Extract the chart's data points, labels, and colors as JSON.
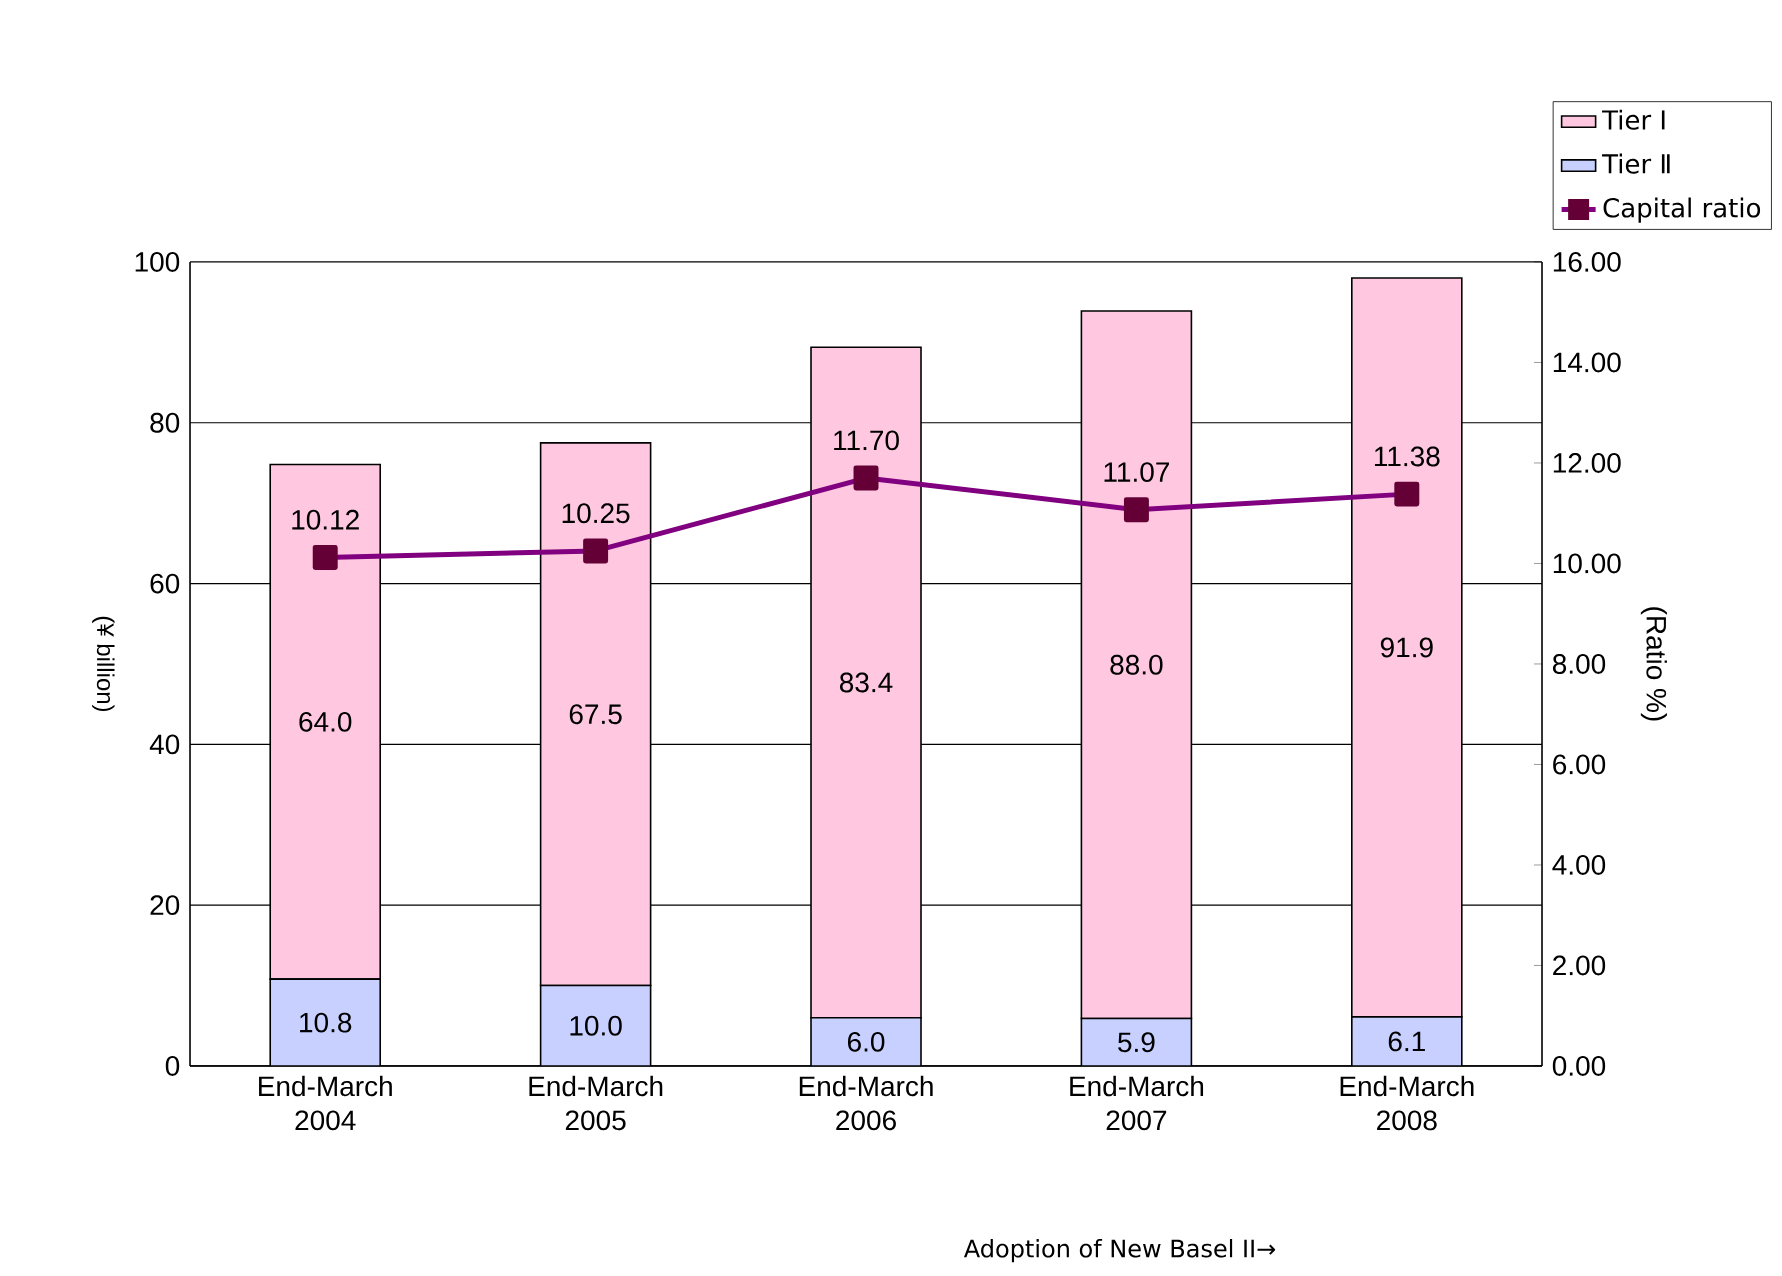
{
  "chart_data": {
    "type": "bar",
    "stacked": true,
    "categories": [
      "End-March 2004",
      "End-March 2005",
      "End-March 2006",
      "End-March 2007",
      "End-March 2008"
    ],
    "series": [
      {
        "name": "Tier Ⅱ",
        "color": "#c8d0ff",
        "values": [
          10.8,
          10.0,
          6.0,
          5.9,
          6.1
        ],
        "value_labels": [
          "10.8",
          "10.0",
          "6.0",
          "5.9",
          "6.1"
        ]
      },
      {
        "name": "Tier Ⅰ",
        "color": "#ffc8e0",
        "values": [
          64.0,
          67.5,
          83.4,
          88.0,
          91.9
        ],
        "value_labels": [
          "64.0",
          "67.5",
          "83.4",
          "88.0",
          "91.9"
        ]
      },
      {
        "name": "Capital ratio",
        "type": "line",
        "axis": "y2",
        "color": "#800080",
        "marker": "square",
        "values": [
          10.12,
          10.25,
          11.7,
          11.07,
          11.38
        ],
        "value_labels": [
          "10.12",
          "10.25",
          "11.70",
          "11.07",
          "11.38"
        ]
      }
    ],
    "ylabel": "(¥ billion)",
    "y2label": "(Ratio %)",
    "ylim": [
      0,
      100
    ],
    "yticks": [
      0,
      20,
      40,
      60,
      80,
      100
    ],
    "y2lim": [
      0,
      16
    ],
    "y2ticks": [
      {
        "value": 0,
        "label": "0.00"
      },
      {
        "value": 2,
        "label": "2.00"
      },
      {
        "value": 4,
        "label": "4.00"
      },
      {
        "value": 6,
        "label": "6.00"
      },
      {
        "value": 8,
        "label": "8.00"
      },
      {
        "value": 10,
        "label": "10.00"
      },
      {
        "value": 12,
        "label": "12.00"
      },
      {
        "value": 14,
        "label": "14.00"
      },
      {
        "value": 16,
        "label": "16.00"
      }
    ],
    "grid": "y",
    "legend": "top right",
    "annotations": [
      "Adoption of New Basel II→"
    ]
  }
}
